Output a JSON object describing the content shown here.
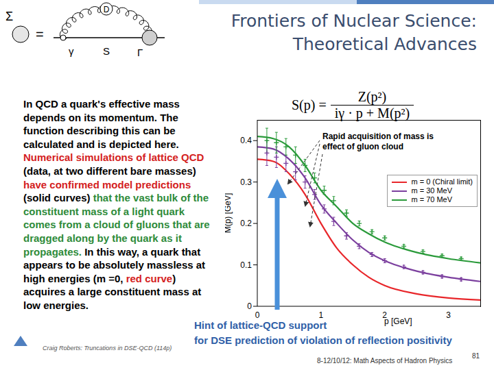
{
  "chart_data": {
    "type": "line",
    "xlabel": "p [GeV]",
    "ylabel": "M(p) [GeV]",
    "xlim": [
      0,
      3.5
    ],
    "ylim": [
      0,
      0.45
    ],
    "xticks": [
      0,
      1,
      2,
      3
    ],
    "yticks": [
      0,
      0.1,
      0.2,
      0.3,
      0.4
    ],
    "legend": "upper right",
    "annotation": [
      "Rapid acquisition of mass is",
      "effect of gluon cloud"
    ],
    "series": [
      {
        "name": "m = 0 (Chiral limit)",
        "type": "line",
        "color": "#e8262a",
        "x": [
          0,
          0.25,
          0.5,
          0.75,
          1,
          1.25,
          1.5,
          1.75,
          2,
          2.5,
          3,
          3.5
        ],
        "values": [
          0.355,
          0.35,
          0.32,
          0.27,
          0.2,
          0.14,
          0.1,
          0.07,
          0.05,
          0.03,
          0.02,
          0.015
        ]
      },
      {
        "name": "m = 30 MeV",
        "type": "line",
        "color": "#7b3f9e",
        "x": [
          0,
          0.25,
          0.5,
          0.75,
          1,
          1.25,
          1.5,
          1.75,
          2,
          2.5,
          3,
          3.5
        ],
        "values": [
          0.385,
          0.38,
          0.355,
          0.31,
          0.245,
          0.2,
          0.16,
          0.13,
          0.11,
          0.085,
          0.07,
          0.06
        ]
      },
      {
        "name": "m = 70 MeV",
        "type": "line",
        "color": "#2a9a3a",
        "x": [
          0,
          0.25,
          0.5,
          0.75,
          1,
          1.25,
          1.5,
          1.75,
          2,
          2.5,
          3,
          3.5
        ],
        "values": [
          0.41,
          0.405,
          0.385,
          0.34,
          0.28,
          0.24,
          0.2,
          0.175,
          0.155,
          0.13,
          0.115,
          0.105
        ]
      },
      {
        "type": "scatter",
        "marker": "cross",
        "color": "#7b3f9e",
        "x": [
          0.15,
          0.3,
          0.45,
          0.6,
          0.75,
          0.9,
          1.05,
          1.2,
          1.4,
          1.6,
          1.8,
          2.0,
          2.3,
          2.6,
          2.9,
          3.2
        ],
        "values": [
          0.37,
          0.36,
          0.345,
          0.325,
          0.3,
          0.27,
          0.235,
          0.205,
          0.17,
          0.145,
          0.125,
          0.11,
          0.095,
          0.082,
          0.072,
          0.065
        ],
        "errors": [
          0.03,
          0.025,
          0.02,
          0.02,
          0.015,
          0.012,
          0.01,
          0.01,
          0.008,
          0.006,
          0.005,
          0.005,
          0.004,
          0.004,
          0.004,
          0.004
        ]
      },
      {
        "type": "scatter",
        "marker": "cross",
        "color": "#2a9a3a",
        "x": [
          0.15,
          0.3,
          0.45,
          0.6,
          0.75,
          0.9,
          1.05,
          1.2,
          1.4,
          1.6,
          1.8,
          2.0,
          2.3,
          2.6,
          2.9,
          3.2
        ],
        "values": [
          0.4,
          0.395,
          0.385,
          0.365,
          0.34,
          0.31,
          0.28,
          0.255,
          0.225,
          0.2,
          0.18,
          0.165,
          0.145,
          0.132,
          0.122,
          0.115
        ],
        "errors": [
          0.03,
          0.025,
          0.02,
          0.02,
          0.015,
          0.012,
          0.01,
          0.01,
          0.008,
          0.006,
          0.005,
          0.005,
          0.004,
          0.004,
          0.004,
          0.004
        ]
      }
    ]
  },
  "slide": {
    "title": [
      "Frontiers of Nuclear Science:",
      "Theoretical Advances"
    ],
    "formula": {
      "lhs": "S(p) =",
      "numerator": "Z(p²)",
      "denominator": "iγ · p + M(p²)"
    },
    "diagram": {
      "lhs": "Σ",
      "eq": "=",
      "gluon": "D",
      "vertex": "γ",
      "propagator": "S",
      "dressed_vertex": "Γ"
    },
    "body": [
      {
        "text": "In QCD a quark's effective mass depends on its momentum. The function describing this can be calculated and is depicted here. ",
        "color": "#000000"
      },
      {
        "text": "Numerical simulations of lattice QCD",
        "color": "#d42020"
      },
      {
        "text": " (data, at two different bare masses) ",
        "color": "#000000"
      },
      {
        "text": "have confirmed model predictions",
        "color": "#d42020"
      },
      {
        "text": " (solid curves) ",
        "color": "#000000"
      },
      {
        "text": "that the vast bulk of the constituent mass of a light quark comes from a cloud of gluons that are dragged along by the quark as it propagates.",
        "color": "#2e8b3a"
      },
      {
        "text": " In this way, a quark that appears to be absolutely massless at high energies (m =0, ",
        "color": "#000000"
      },
      {
        "text": "red curve",
        "color": "#d42020"
      },
      {
        "text": ") acquires a large constituent mass at low energies.",
        "color": "#000000"
      }
    ],
    "hint": [
      "Hint of lattice-QCD support",
      "for DSE prediction of violation of reflection positivity"
    ],
    "credit": "Craig Roberts: Truncations in DSE-QCD (114p)",
    "footer": "8-12/10/12: Math Aspects of Hadron Physics",
    "page": "81"
  }
}
